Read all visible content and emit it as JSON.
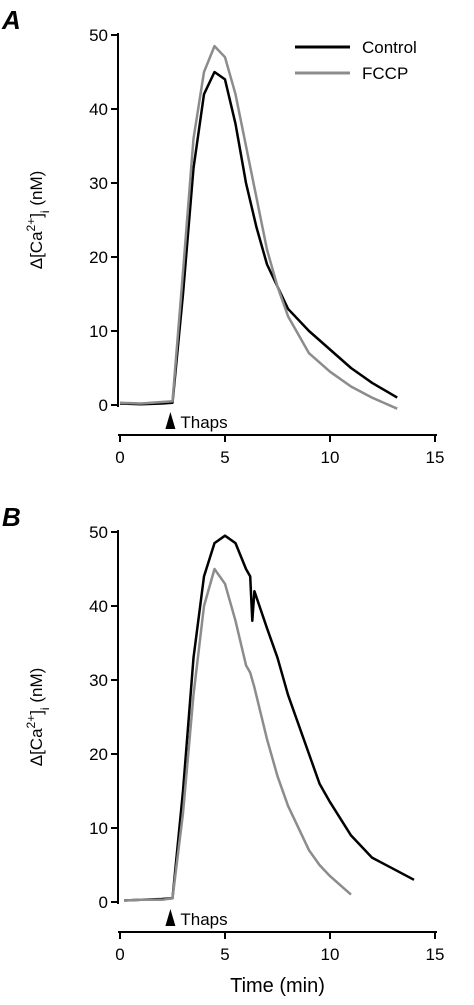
{
  "chart_data": [
    {
      "type": "line",
      "panel": "A",
      "ylabel_parts": [
        "Δ[Ca",
        "2+",
        "]",
        "i",
        " (nM)"
      ],
      "xlim": [
        0,
        15
      ],
      "xticks": [
        0,
        5,
        10,
        15
      ],
      "ylim": [
        0,
        50
      ],
      "yticks": [
        0,
        10,
        20,
        30,
        40,
        50
      ],
      "annotation": {
        "text": "Thaps",
        "x": 2.4
      },
      "legend": "top-right",
      "x": [
        0,
        1,
        2,
        2.5,
        3,
        3.5,
        4,
        4.5,
        5,
        5.5,
        6,
        6.5,
        7,
        7.5,
        8,
        9,
        10,
        11,
        12,
        13.2
      ],
      "series": [
        {
          "name": "Control",
          "color": "#000000",
          "values": [
            0.2,
            0.1,
            0.2,
            0.3,
            15,
            32,
            42,
            45,
            44,
            38,
            30,
            24,
            19,
            16,
            13,
            10,
            7.5,
            5,
            3,
            1
          ]
        },
        {
          "name": "FCCP",
          "color": "#8c8c8c",
          "values": [
            0.3,
            0.2,
            0.4,
            0.5,
            18,
            36,
            45,
            48.5,
            47,
            42,
            35,
            28,
            21,
            16,
            12,
            7,
            4.5,
            2.5,
            1,
            -0.5
          ]
        }
      ]
    },
    {
      "type": "line",
      "panel": "B",
      "ylabel_parts": [
        "Δ[Ca",
        "2+",
        "]",
        "i",
        " (nM)"
      ],
      "xlabel": "Time (min)",
      "xlim": [
        0,
        15
      ],
      "xticks": [
        0,
        5,
        10,
        15
      ],
      "ylim": [
        0,
        50
      ],
      "yticks": [
        0,
        10,
        20,
        30,
        40,
        50
      ],
      "annotation": {
        "text": "Thaps",
        "x": 2.4
      },
      "x": [
        0.2,
        1,
        2,
        2.5,
        3,
        3.5,
        4,
        4.5,
        5,
        5.5,
        6,
        6.2,
        6.3,
        6.4,
        7,
        7.5,
        8,
        9,
        9.5,
        10,
        11,
        12,
        13,
        14
      ],
      "series": [
        {
          "color": "#000000",
          "values": [
            0.2,
            0.3,
            0.4,
            0.5,
            15,
            33,
            44,
            48.5,
            49.5,
            48.5,
            45,
            44,
            38,
            42,
            37,
            33,
            28,
            20,
            16,
            13.5,
            9,
            6,
            4.5,
            3
          ]
        },
        {
          "color": "#8c8c8c",
          "values": [
            0.2,
            0.3,
            0.3,
            0.5,
            12,
            28,
            40,
            45,
            43,
            38,
            32,
            31,
            30,
            29,
            22,
            17,
            13,
            7,
            5,
            3.5,
            1,
            null,
            null,
            null
          ]
        }
      ]
    }
  ]
}
